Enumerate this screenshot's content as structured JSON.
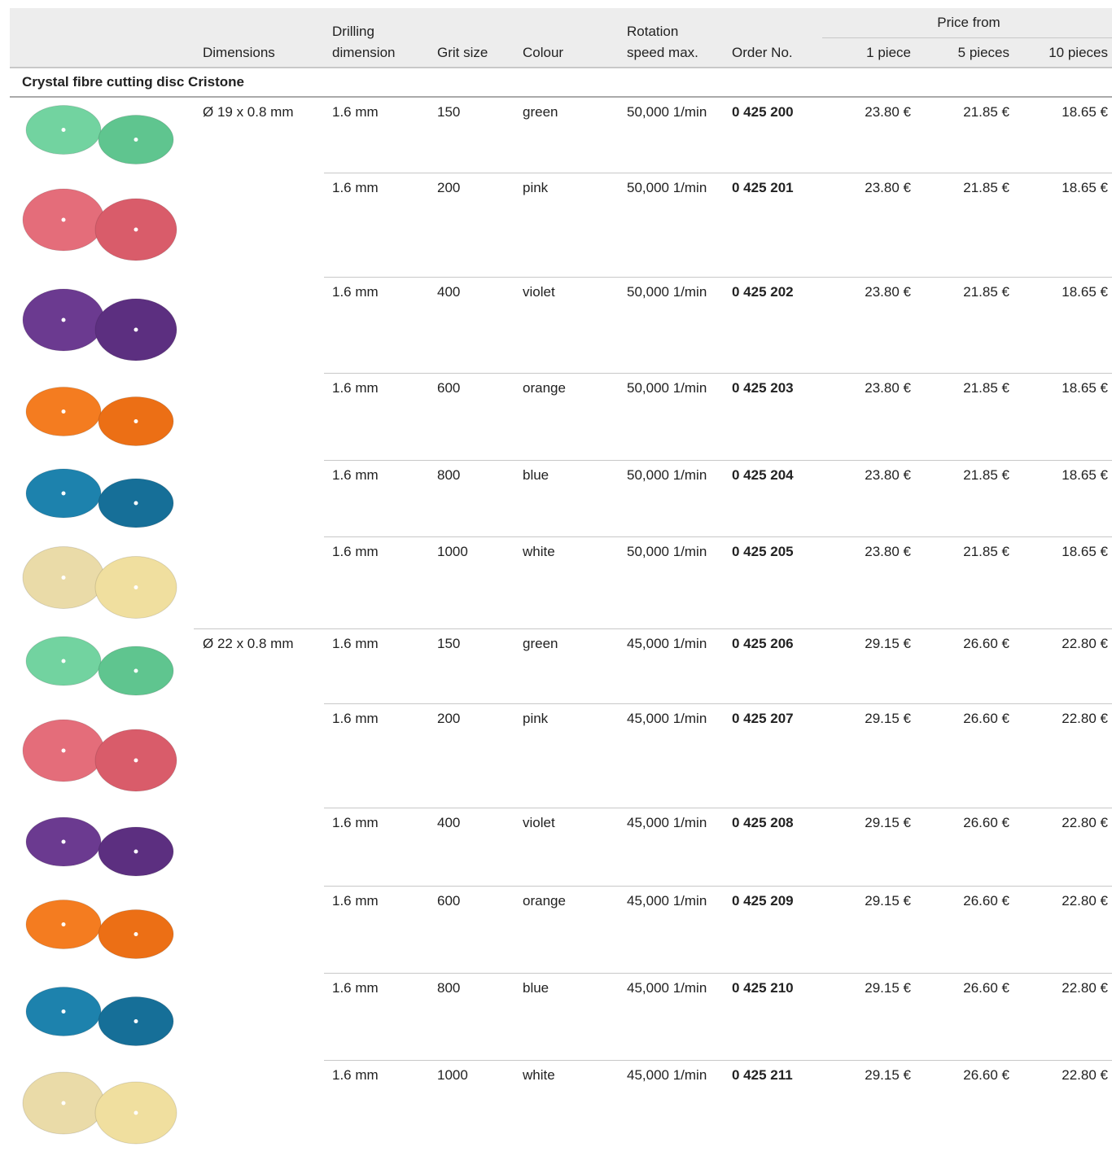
{
  "header": {
    "dimensions": "Dimensions",
    "drilling": "Drilling\ndimension",
    "grit": "Grit size",
    "colour": "Colour",
    "rotation": "Rotation\nspeed max.",
    "order": "Order No.",
    "price_from": "Price from",
    "qty": [
      "1 piece",
      "5 pieces",
      "10 pieces"
    ]
  },
  "section": "Crystal fibre cutting disc Cristone",
  "rows": [
    {
      "dimension": "Ø 19 x 0.8 mm",
      "cells": [
        "1.6 mm",
        "150",
        "green",
        "50,000 1/min",
        "0 425 200",
        "23.80 €",
        "21.85 €",
        "18.65 €"
      ]
    },
    {
      "cells": [
        "1.6 mm",
        "200",
        "pink",
        "50,000 1/min",
        "0 425 201",
        "23.80 €",
        "21.85 €",
        "18.65 €"
      ]
    },
    {
      "cells": [
        "1.6 mm",
        "400",
        "violet",
        "50,000 1/min",
        "0 425 202",
        "23.80 €",
        "21.85 €",
        "18.65 €"
      ]
    },
    {
      "cells": [
        "1.6 mm",
        "600",
        "orange",
        "50,000 1/min",
        "0 425 203",
        "23.80 €",
        "21.85 €",
        "18.65 €"
      ]
    },
    {
      "cells": [
        "1.6 mm",
        "800",
        "blue",
        "50,000 1/min",
        "0 425 204",
        "23.80 €",
        "21.85 €",
        "18.65 €"
      ]
    },
    {
      "cells": [
        "1.6 mm",
        "1000",
        "white",
        "50,000 1/min",
        "0 425 205",
        "23.80 €",
        "21.85 €",
        "18.65 €"
      ]
    },
    {
      "dimension": "Ø 22 x 0.8 mm",
      "cells": [
        "1.6 mm",
        "150",
        "green",
        "45,000 1/min",
        "0 425 206",
        "29.15 €",
        "26.60 €",
        "22.80 €"
      ]
    },
    {
      "cells": [
        "1.6 mm",
        "200",
        "pink",
        "45,000 1/min",
        "0 425 207",
        "29.15 €",
        "26.60 €",
        "22.80 €"
      ]
    },
    {
      "cells": [
        "1.6 mm",
        "400",
        "violet",
        "45,000 1/min",
        "0 425 208",
        "29.15 €",
        "26.60 €",
        "22.80 €"
      ]
    },
    {
      "cells": [
        "1.6 mm",
        "600",
        "orange",
        "45,000 1/min",
        "0 425 209",
        "29.15 €",
        "26.60 €",
        "22.80 €"
      ]
    },
    {
      "cells": [
        "1.6 mm",
        "800",
        "blue",
        "45,000 1/min",
        "0 425 210",
        "29.15 €",
        "26.60 €",
        "22.80 €"
      ]
    },
    {
      "cells": [
        "1.6 mm",
        "1000",
        "white",
        "45,000 1/min",
        "0 425 211",
        "29.15 €",
        "26.60 €",
        "22.80 €"
      ]
    }
  ]
}
